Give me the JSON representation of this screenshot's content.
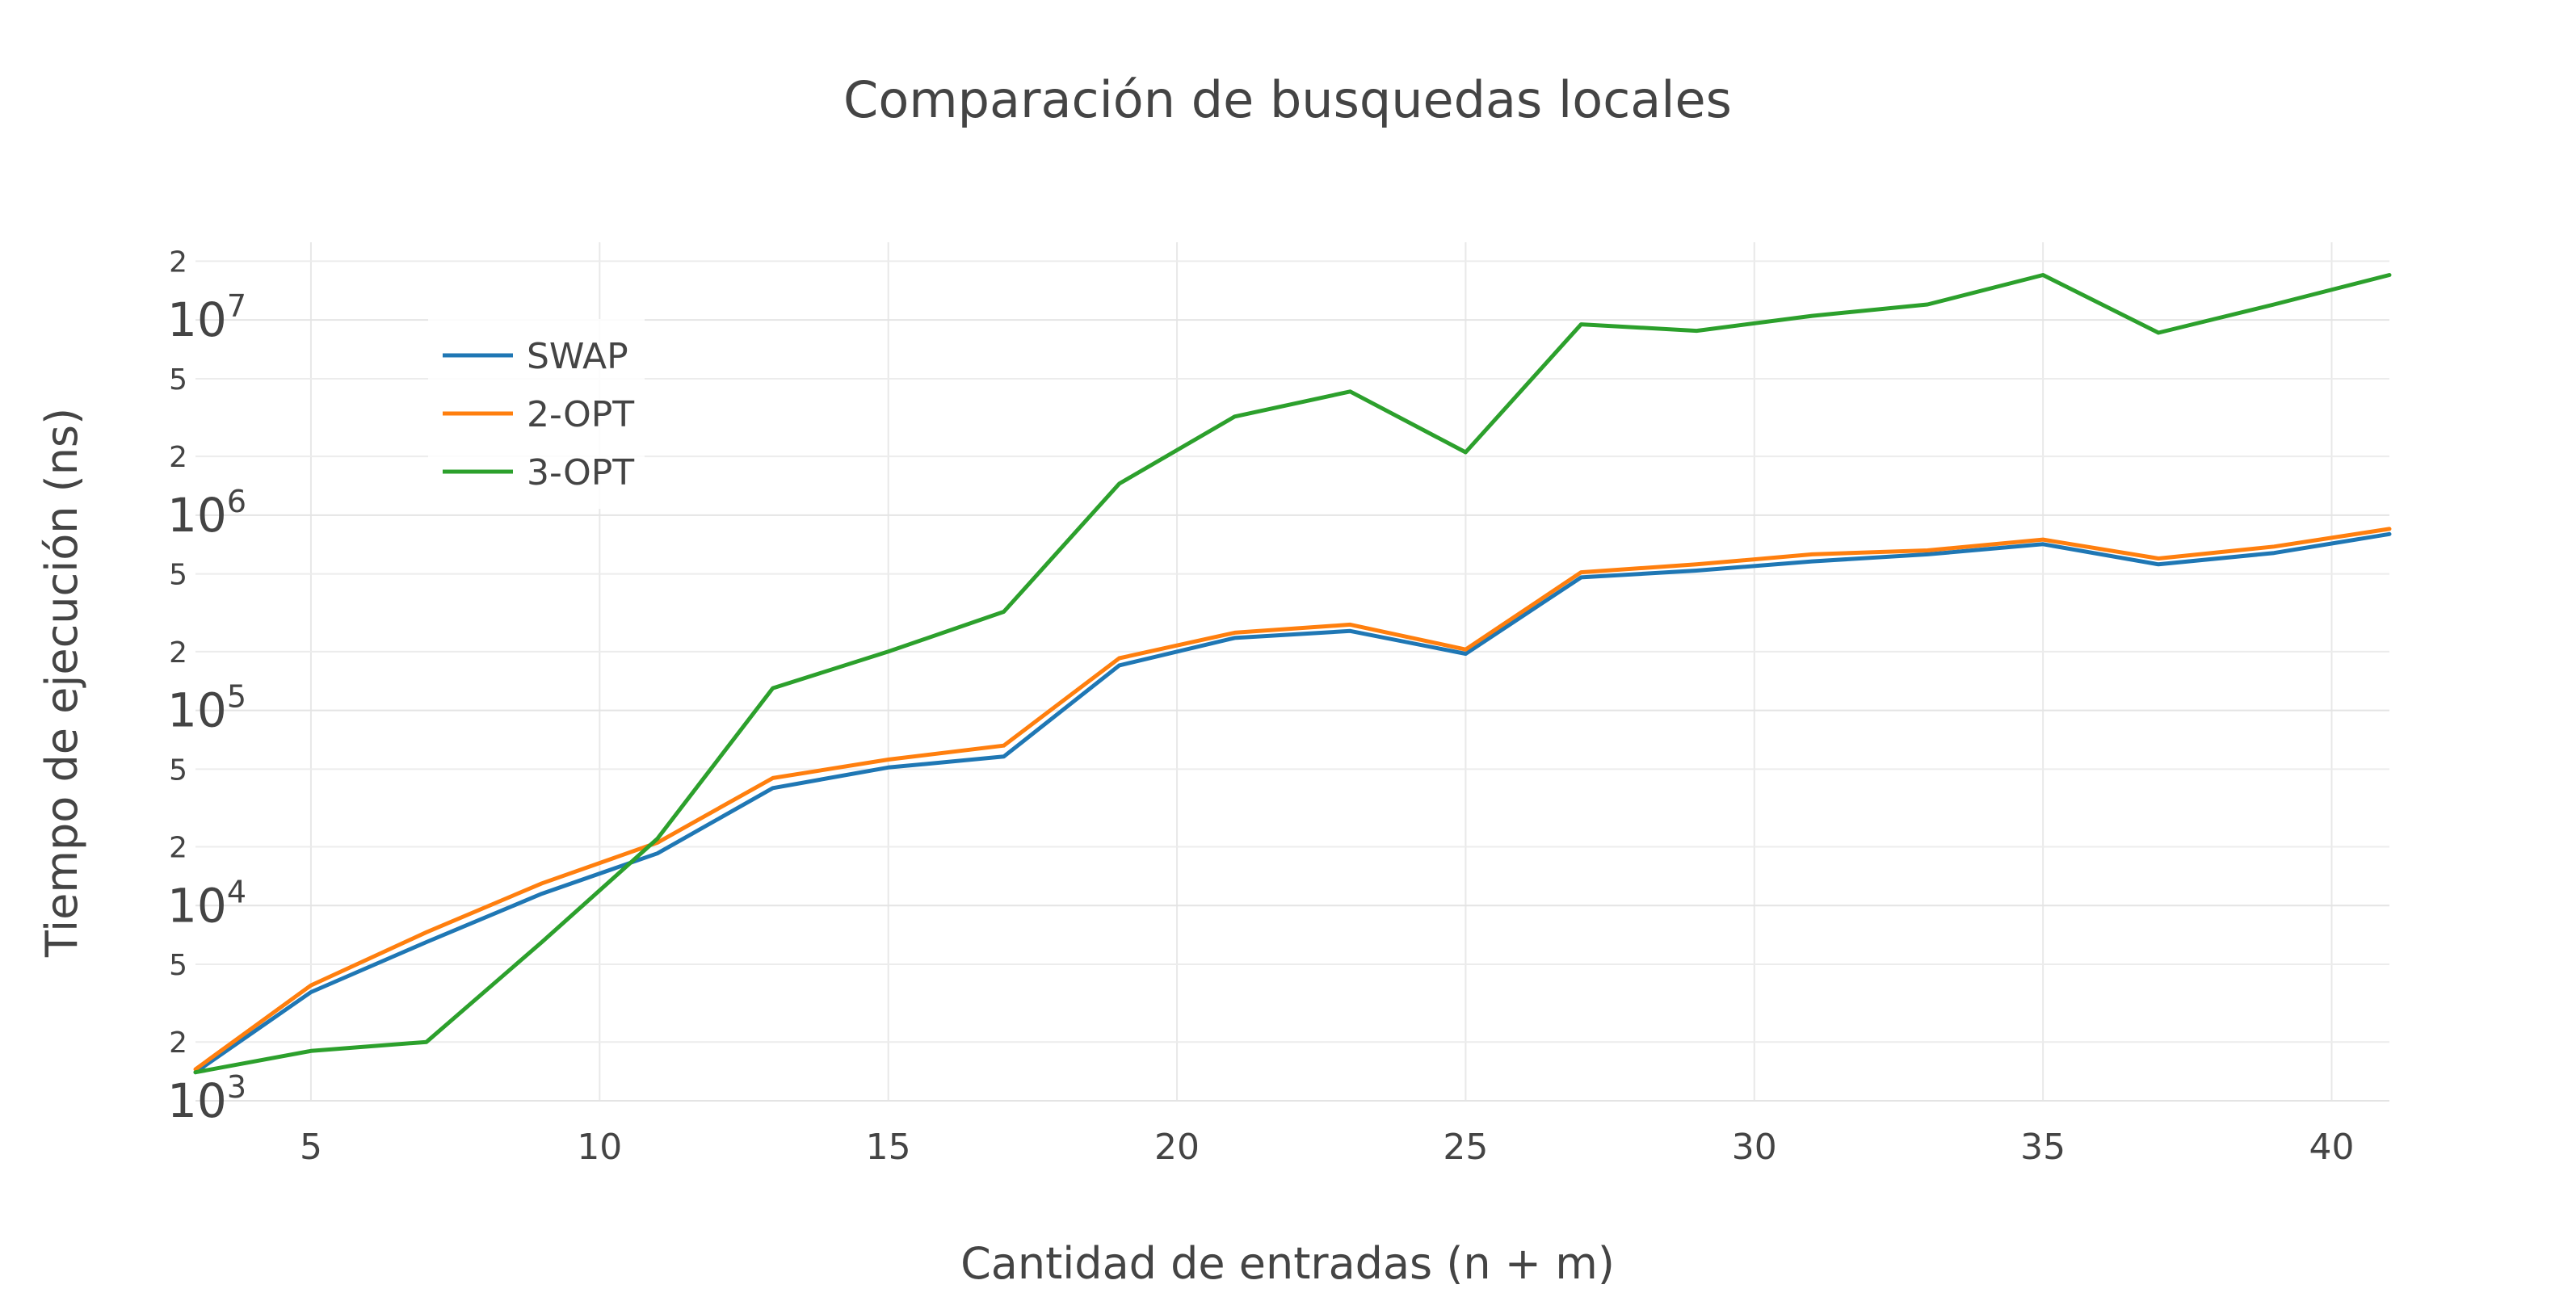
{
  "chart_data": {
    "type": "line",
    "title": "Comparación de busquedas locales",
    "xlabel": "Cantidad de entradas (n + m)",
    "ylabel": "Tiempo de ejecución (ns)",
    "x_scale": "linear",
    "y_scale": "log",
    "xlim": [
      3,
      41
    ],
    "ylim": [
      1000,
      25000000
    ],
    "x_ticks": [
      5,
      10,
      15,
      20,
      25,
      30,
      35,
      40
    ],
    "x_tick_labels": [
      "5",
      "10",
      "15",
      "20",
      "25",
      "30",
      "35",
      "40"
    ],
    "y_major_ticks": [
      {
        "value": 1000,
        "base": "10",
        "exp": "3"
      },
      {
        "value": 10000,
        "base": "10",
        "exp": "4"
      },
      {
        "value": 100000,
        "base": "10",
        "exp": "5"
      },
      {
        "value": 1000000,
        "base": "10",
        "exp": "6"
      },
      {
        "value": 10000000,
        "base": "10",
        "exp": "7"
      }
    ],
    "y_minor_ticks": [
      {
        "value": 2000,
        "label": "2"
      },
      {
        "value": 5000,
        "label": "5"
      },
      {
        "value": 20000,
        "label": "2"
      },
      {
        "value": 50000,
        "label": "5"
      },
      {
        "value": 200000,
        "label": "2"
      },
      {
        "value": 500000,
        "label": "5"
      },
      {
        "value": 2000000,
        "label": "2"
      },
      {
        "value": 5000000,
        "label": "5"
      },
      {
        "value": 20000000,
        "label": "2"
      }
    ],
    "grid": true,
    "legend_position": "top-left",
    "x": [
      3,
      5,
      7,
      9,
      11,
      13,
      15,
      17,
      19,
      21,
      23,
      25,
      27,
      29,
      31,
      33,
      35,
      37,
      39,
      41
    ],
    "series": [
      {
        "name": "SWAP",
        "color": "#1f77b4",
        "values": [
          1400,
          3600,
          6500,
          11500,
          18500,
          40000,
          51000,
          58000,
          170000,
          235000,
          255000,
          195000,
          480000,
          520000,
          580000,
          630000,
          710000,
          560000,
          640000,
          800000
        ]
      },
      {
        "name": "2-OPT",
        "color": "#ff7f0e",
        "values": [
          1450,
          3900,
          7300,
          13000,
          21000,
          45000,
          56000,
          66000,
          185000,
          250000,
          275000,
          205000,
          510000,
          560000,
          630000,
          660000,
          750000,
          600000,
          690000,
          850000
        ]
      },
      {
        "name": "3-OPT",
        "color": "#2ca02c",
        "values": [
          1400,
          1800,
          2000,
          6500,
          22000,
          130000,
          200000,
          320000,
          1450000,
          3200000,
          4300000,
          2100000,
          9500000,
          8800000,
          10500000,
          12000000,
          17000000,
          8600000,
          12000000,
          17000000
        ]
      }
    ]
  }
}
